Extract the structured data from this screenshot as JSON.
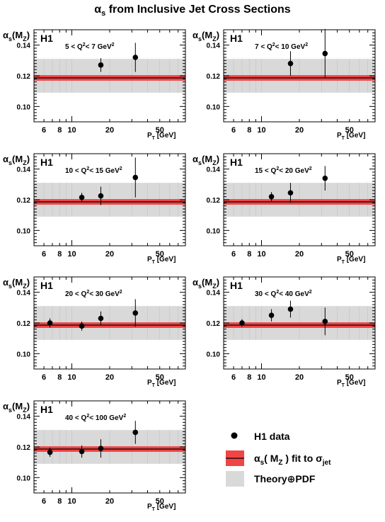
{
  "title": {
    "alpha": "α",
    "sub": "s",
    "rest": " from Inclusive Jet Cross Sections"
  },
  "experiment_label": "H1",
  "colors": {
    "band": "#d9d9d9",
    "fit": "#f04545",
    "line": "#000000"
  },
  "chart_data": [
    {
      "type": "scatter",
      "q2_low": "5",
      "q2_high": "7",
      "x": [
        17.0,
        32.0
      ],
      "y": [
        0.127,
        0.132
      ],
      "yerr": [
        0.0045,
        0.0095
      ],
      "xlim": [
        5,
        80
      ],
      "ylim": [
        0.09,
        0.15
      ],
      "xscale": "log",
      "fit_value": 0.1186,
      "fit_band": [
        0.1168,
        0.1204
      ],
      "theory_band": [
        0.109,
        0.131
      ]
    },
    {
      "type": "scatter",
      "q2_low": "7",
      "q2_high": "10",
      "x": [
        17.0,
        32.0
      ],
      "y": [
        0.128,
        0.1345
      ],
      "yerr": [
        0.008,
        0.016
      ],
      "xlim": [
        5,
        80
      ],
      "ylim": [
        0.09,
        0.15
      ],
      "xscale": "log",
      "fit_value": 0.1186,
      "fit_band": [
        0.1168,
        0.1204
      ],
      "theory_band": [
        0.109,
        0.131
      ]
    },
    {
      "type": "scatter",
      "q2_low": "10",
      "q2_high": "15",
      "x": [
        12.0,
        17.0,
        32.0
      ],
      "y": [
        0.1215,
        0.1225,
        0.1345
      ],
      "yerr": [
        0.003,
        0.006,
        0.013
      ],
      "xlim": [
        5,
        80
      ],
      "ylim": [
        0.09,
        0.15
      ],
      "xscale": "log",
      "fit_value": 0.1186,
      "fit_band": [
        0.1168,
        0.1204
      ],
      "theory_band": [
        0.109,
        0.131
      ]
    },
    {
      "type": "scatter",
      "q2_low": "15",
      "q2_high": "20",
      "x": [
        12.0,
        17.0,
        32.0
      ],
      "y": [
        0.122,
        0.1245,
        0.134
      ],
      "yerr": [
        0.003,
        0.0065,
        0.008
      ],
      "xlim": [
        5,
        80
      ],
      "ylim": [
        0.09,
        0.15
      ],
      "xscale": "log",
      "fit_value": 0.1186,
      "fit_band": [
        0.1168,
        0.1204
      ],
      "theory_band": [
        0.109,
        0.131
      ]
    },
    {
      "type": "scatter",
      "q2_low": "20",
      "q2_high": "30",
      "x": [
        6.7,
        12.0,
        17.0,
        32.0
      ],
      "y": [
        0.12,
        0.118,
        0.123,
        0.1265
      ],
      "yerr": [
        0.003,
        0.003,
        0.0045,
        0.009
      ],
      "xlim": [
        5,
        80
      ],
      "ylim": [
        0.09,
        0.15
      ],
      "xscale": "log",
      "fit_value": 0.1186,
      "fit_band": [
        0.1168,
        0.1204
      ],
      "theory_band": [
        0.109,
        0.131
      ]
    },
    {
      "type": "scatter",
      "q2_low": "30",
      "q2_high": "40",
      "x": [
        7.0,
        12.0,
        17.0,
        32.0
      ],
      "y": [
        0.12,
        0.125,
        0.129,
        0.121
      ],
      "yerr": [
        0.0025,
        0.004,
        0.0055,
        0.009
      ],
      "xlim": [
        5,
        80
      ],
      "ylim": [
        0.09,
        0.15
      ],
      "xscale": "log",
      "fit_value": 0.1186,
      "fit_band": [
        0.1168,
        0.1204
      ],
      "theory_band": [
        0.109,
        0.131
      ]
    },
    {
      "type": "scatter",
      "q2_low": "40",
      "q2_high": "100",
      "x": [
        6.7,
        12.0,
        17.0,
        32.0
      ],
      "y": [
        0.1165,
        0.117,
        0.119,
        0.1295
      ],
      "yerr": [
        0.003,
        0.004,
        0.006,
        0.0075
      ],
      "xlim": [
        5,
        80
      ],
      "ylim": [
        0.09,
        0.15
      ],
      "xscale": "log",
      "fit_value": 0.1186,
      "fit_band": [
        0.1168,
        0.1204
      ],
      "theory_band": [
        0.109,
        0.131
      ]
    }
  ],
  "axis": {
    "ylabel": {
      "alpha": "α",
      "sub_s": "s",
      "open": "(M",
      "sub_z": "Z",
      "close": ")"
    },
    "xlabel": {
      "main": "P",
      "sub": "T",
      "unit": "  [GeV]"
    },
    "xticks": [
      6,
      8,
      10,
      20,
      50
    ],
    "yticks": [
      0.1,
      0.12,
      0.14
    ],
    "ytick_labels": [
      "0.10",
      "0.12",
      "0.14"
    ]
  },
  "legend": {
    "data": "H1 data",
    "fit": {
      "alpha": "α",
      "sub_s": "s",
      "mz_open": "( M",
      "sub_z": "Z",
      "mz_close": " ) fit to σ",
      "sub_jet": "jet"
    },
    "theory": "Theory⊕PDF"
  }
}
